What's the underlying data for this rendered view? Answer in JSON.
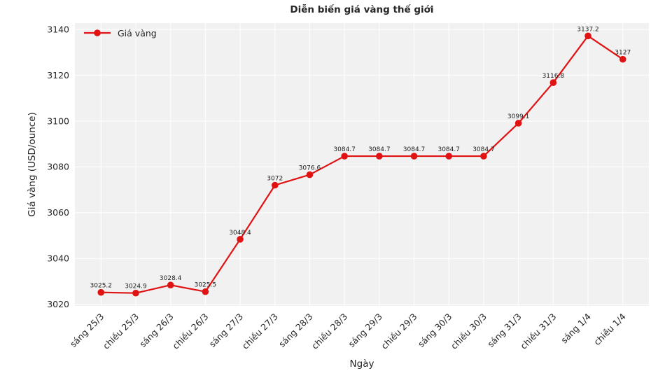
{
  "chart_data": {
    "type": "line",
    "title": "Diễn biến giá vàng thế giới",
    "xlabel": "Ngày",
    "ylabel": "Giá vàng (USD/ounce)",
    "legend_position": "top-left",
    "grid": true,
    "plot_background": "#f1f1f1",
    "grid_color": "#ffffff",
    "text_color": "#262626",
    "label_color": "#1c1c1c",
    "categories": [
      "sáng 25/3",
      "chiều 25/3",
      "sáng 26/3",
      "chiều 26/3",
      "sáng 27/3",
      "chiều 27/3",
      "sáng 28/3",
      "chiều 28/3",
      "sáng 29/3",
      "chiều 29/3",
      "sáng 30/3",
      "chiều 30/3",
      "sáng 31/3",
      "chiều 31/3",
      "sáng 1/4",
      "chiều 1/4"
    ],
    "series": [
      {
        "name": "Giá vàng",
        "color": "#e01212",
        "marker": "circle",
        "values": [
          3025.2,
          3024.9,
          3028.4,
          3025.5,
          3048.4,
          3072,
          3076.6,
          3084.7,
          3084.7,
          3084.7,
          3084.7,
          3084.7,
          3099.1,
          3116.8,
          3137.2,
          3127
        ]
      }
    ],
    "point_labels": [
      "3025.2",
      "3024.9",
      "3028.4",
      "3025.5",
      "3048.4",
      "3072",
      "3076.6",
      "3084.7",
      "3084.7",
      "3084.7",
      "3084.7",
      "3084.7",
      "3099.1",
      "3116.8",
      "3137.2",
      "3127"
    ],
    "yticks": [
      3020,
      3040,
      3060,
      3080,
      3100,
      3120,
      3140
    ],
    "ylim": [
      3019.3,
      3142.8
    ]
  }
}
